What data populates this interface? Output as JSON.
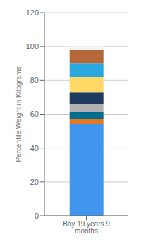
{
  "chart_data": {
    "type": "bar",
    "stacked": true,
    "categories": [
      "Boy 19 years 9 months"
    ],
    "ylabel": "Percentile Weight in Kilograms",
    "ylim": [
      0,
      120
    ],
    "yticks": [
      0,
      20,
      40,
      60,
      80,
      100,
      120
    ],
    "grid": true,
    "series": [
      {
        "color": "#4096EE",
        "values": [
          54
        ]
      },
      {
        "color": "#E87722",
        "values": [
          3
        ]
      },
      {
        "color": "#006E8C",
        "values": [
          4
        ]
      },
      {
        "color": "#B0B0B0",
        "values": [
          5
        ]
      },
      {
        "color": "#1E3A5F",
        "values": [
          7
        ]
      },
      {
        "color": "#FFD966",
        "values": [
          9
        ]
      },
      {
        "color": "#29A8E0",
        "values": [
          8
        ]
      },
      {
        "color": "#B5673A",
        "values": [
          8
        ]
      },
      {
        "color": "#f5f5f5",
        "values": [
          2
        ]
      }
    ]
  }
}
